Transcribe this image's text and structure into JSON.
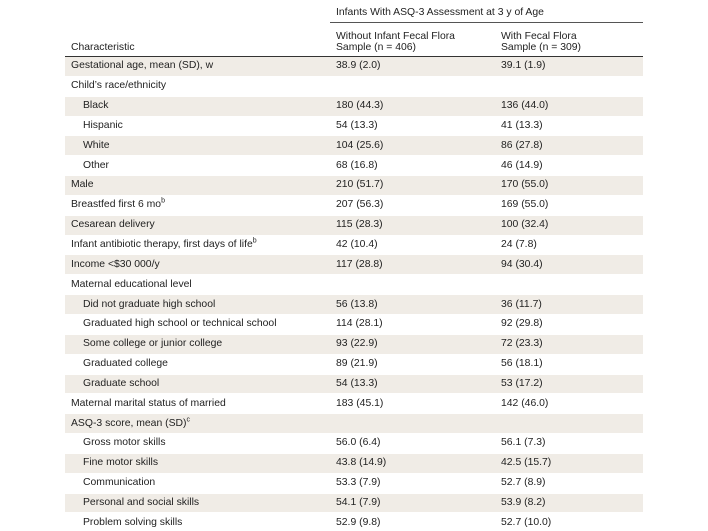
{
  "header": {
    "group_label": "Infants With ASQ-3 Assessment at 3 y of Age",
    "characteristic_label": "Characteristic",
    "col1_line1": "Without Infant Fecal Flora",
    "col1_line2": "Sample (n = 406)",
    "col2_line1": "With Fecal Flora",
    "col2_line2": "Sample (n = 309)"
  },
  "rows": [
    {
      "label": "Gestational age, mean (SD), w",
      "sup": "",
      "a": "38.9 (2.0)",
      "b": "39.1 (1.9)"
    },
    {
      "label": "Child’s race/ethnicity",
      "sup": "",
      "a": "",
      "b": ""
    },
    {
      "label": "Black",
      "sup": "",
      "a": "180 (44.3)",
      "b": "136 (44.0)"
    },
    {
      "label": "Hispanic",
      "sup": "",
      "a": "54 (13.3)",
      "b": "41 (13.3)"
    },
    {
      "label": "White",
      "sup": "",
      "a": "104 (25.6)",
      "b": "86 (27.8)"
    },
    {
      "label": "Other",
      "sup": "",
      "a": "68 (16.8)",
      "b": "46 (14.9)"
    },
    {
      "label": "Male",
      "sup": "",
      "a": "210 (51.7)",
      "b": "170 (55.0)"
    },
    {
      "label": "Breastfed first 6 mo",
      "sup": "b",
      "a": "207 (56.3)",
      "b": "169 (55.0)"
    },
    {
      "label": "Cesarean delivery",
      "sup": "",
      "a": "115 (28.3)",
      "b": "100 (32.4)"
    },
    {
      "label": "Infant antibiotic therapy, first days of life",
      "sup": "b",
      "a": "42 (10.4)",
      "b": "24 (7.8)"
    },
    {
      "label": "Income <$30 000/y",
      "sup": "",
      "a": "117 (28.8)",
      "b": "94 (30.4)"
    },
    {
      "label": "Maternal educational level",
      "sup": "",
      "a": "",
      "b": ""
    },
    {
      "label": "Did not graduate high school",
      "sup": "",
      "a": "56 (13.8)",
      "b": "36 (11.7)"
    },
    {
      "label": "Graduated high school or technical school",
      "sup": "",
      "a": "114 (28.1)",
      "b": "92 (29.8)"
    },
    {
      "label": "Some college or junior college",
      "sup": "",
      "a": "93 (22.9)",
      "b": "72 (23.3)"
    },
    {
      "label": "Graduated college",
      "sup": "",
      "a": "89 (21.9)",
      "b": "56 (18.1)"
    },
    {
      "label": "Graduate school",
      "sup": "",
      "a": "54 (13.3)",
      "b": "53 (17.2)"
    },
    {
      "label": "Maternal marital status of married",
      "sup": "",
      "a": "183 (45.1)",
      "b": "142 (46.0)"
    },
    {
      "label": "ASQ-3 score, mean (SD)",
      "sup": "c",
      "a": "",
      "b": ""
    },
    {
      "label": "Gross motor skills",
      "sup": "",
      "a": "56.0 (6.4)",
      "b": "56.1 (7.3)"
    },
    {
      "label": "Fine motor skills",
      "sup": "",
      "a": "43.8 (14.9)",
      "b": "42.5 (15.7)"
    },
    {
      "label": "Communication",
      "sup": "",
      "a": "53.3 (7.9)",
      "b": "52.7 (8.9)"
    },
    {
      "label": "Personal and social skills",
      "sup": "",
      "a": "54.1 (7.9)",
      "b": "53.9 (8.2)"
    },
    {
      "label": "Problem solving skills",
      "sup": "",
      "a": "52.9 (9.8)",
      "b": "52.7 (10.0)"
    }
  ]
}
